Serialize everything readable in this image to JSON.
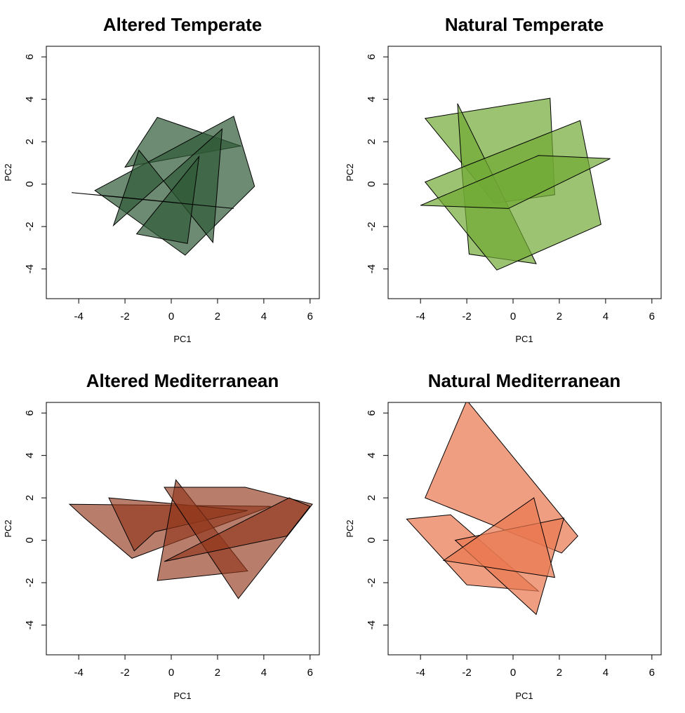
{
  "chart_data": [
    {
      "type": "area",
      "title": "Altered Temperate",
      "xlabel": "PC1",
      "ylabel": "PC2",
      "xlim": [
        -5.4,
        6.4
      ],
      "ylim": [
        -5.4,
        6.5
      ],
      "xticks": [
        -4,
        -2,
        0,
        2,
        4,
        6
      ],
      "yticks": [
        -4,
        -2,
        0,
        2,
        4,
        6
      ],
      "fill_color": "#2f5a36",
      "fill_opacity": 0.7,
      "polygons": [
        [
          [
            -0.6,
            3.15
          ],
          [
            3.0,
            1.8
          ],
          [
            -2.0,
            0.8
          ]
        ],
        [
          [
            2.7,
            3.2
          ],
          [
            3.6,
            -0.1
          ],
          [
            0.6,
            -3.35
          ],
          [
            -3.3,
            -0.3
          ]
        ],
        [
          [
            2.2,
            2.6
          ],
          [
            1.8,
            -2.75
          ],
          [
            -1.4,
            1.6
          ],
          [
            -2.5,
            -1.95
          ]
        ],
        [
          [
            1.2,
            1.3
          ],
          [
            0.7,
            -2.8
          ],
          [
            -1.5,
            -2.35
          ]
        ],
        [
          [
            -4.3,
            -0.4
          ],
          [
            2.7,
            -1.15
          ],
          [
            -2.3,
            -0.6
          ]
        ]
      ]
    },
    {
      "type": "area",
      "title": "Natural Temperate",
      "xlabel": "PC1",
      "ylabel": "PC2",
      "xlim": [
        -5.4,
        6.4
      ],
      "ylim": [
        -5.4,
        6.5
      ],
      "xticks": [
        -4,
        -2,
        0,
        2,
        4,
        6
      ],
      "yticks": [
        -4,
        -2,
        0,
        2,
        4,
        6
      ],
      "fill_color": "#70a935",
      "fill_opacity": 0.7,
      "polygons": [
        [
          [
            -3.8,
            3.1
          ],
          [
            1.6,
            4.05
          ],
          [
            1.8,
            -0.5
          ],
          [
            -0.8,
            -0.9
          ]
        ],
        [
          [
            -2.4,
            3.8
          ],
          [
            1.0,
            -3.75
          ],
          [
            -1.9,
            -3.3
          ],
          [
            -2.2,
            0.5
          ]
        ],
        [
          [
            -3.8,
            0.1
          ],
          [
            2.9,
            3.0
          ],
          [
            3.8,
            -1.9
          ],
          [
            -0.7,
            -4.05
          ]
        ],
        [
          [
            -4.0,
            -1.0
          ],
          [
            1.1,
            1.35
          ],
          [
            4.2,
            1.2
          ],
          [
            -0.2,
            -1.15
          ]
        ]
      ]
    },
    {
      "type": "area",
      "title": "Altered Mediterranean",
      "xlabel": "PC1",
      "ylabel": "PC2",
      "xlim": [
        -5.4,
        6.4
      ],
      "ylim": [
        -5.4,
        6.5
      ],
      "xticks": [
        -4,
        -2,
        0,
        2,
        4,
        6
      ],
      "yticks": [
        -4,
        -2,
        0,
        2,
        4,
        6
      ],
      "fill_color": "#92381b",
      "fill_opacity": 0.65,
      "polygons": [
        [
          [
            -4.4,
            1.7
          ],
          [
            4.3,
            1.6
          ],
          [
            -1.7,
            -0.85
          ],
          [
            -3.8,
            1.1
          ]
        ],
        [
          [
            -2.7,
            2.0
          ],
          [
            3.3,
            1.4
          ],
          [
            -0.7,
            0.4
          ],
          [
            -1.6,
            -0.5
          ]
        ],
        [
          [
            0.2,
            2.85
          ],
          [
            3.3,
            -1.45
          ],
          [
            -0.6,
            -1.9
          ]
        ],
        [
          [
            -0.3,
            2.5
          ],
          [
            3.2,
            2.5
          ],
          [
            6.1,
            1.7
          ],
          [
            2.9,
            -2.75
          ]
        ],
        [
          [
            5.1,
            2.0
          ],
          [
            6.0,
            1.6
          ],
          [
            5.0,
            0.2
          ],
          [
            -0.3,
            -1.0
          ]
        ]
      ]
    },
    {
      "type": "area",
      "title": "Natural Mediterranean",
      "xlabel": "PC1",
      "ylabel": "PC2",
      "xlim": [
        -5.4,
        6.4
      ],
      "ylim": [
        -5.4,
        6.5
      ],
      "xticks": [
        -4,
        -2,
        0,
        2,
        4,
        6
      ],
      "yticks": [
        -4,
        -2,
        0,
        2,
        4,
        6
      ],
      "fill_color": "#e97850",
      "fill_opacity": 0.72,
      "polygons": [
        [
          [
            -2.0,
            6.6
          ],
          [
            -3.8,
            2.0
          ],
          [
            2.1,
            -0.6
          ],
          [
            2.8,
            0.2
          ]
        ],
        [
          [
            -4.6,
            1.0
          ],
          [
            -2.7,
            1.2
          ],
          [
            1.1,
            -2.4
          ],
          [
            -2.0,
            -2.1
          ]
        ],
        [
          [
            -2.5,
            0.0
          ],
          [
            1.0,
            -3.5
          ],
          [
            2.2,
            1.05
          ]
        ],
        [
          [
            0.9,
            2.0
          ],
          [
            1.8,
            -1.75
          ],
          [
            -3.0,
            -0.95
          ]
        ]
      ]
    }
  ]
}
